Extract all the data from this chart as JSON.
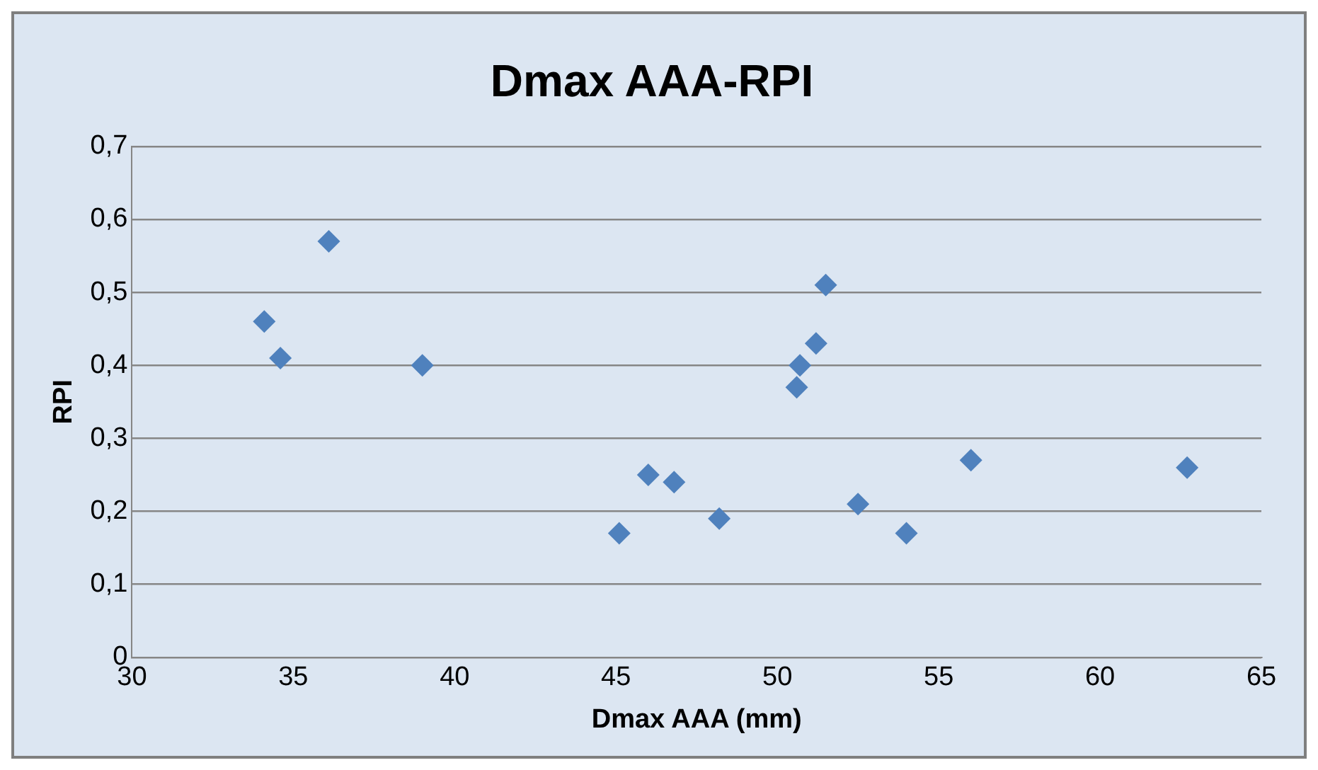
{
  "chart_data": {
    "type": "scatter",
    "title": "Dmax AAA-RPI",
    "xlabel": "Dmax AAA (mm)",
    "ylabel": "RPI",
    "x": [
      34.1,
      34.6,
      36.1,
      39.0,
      45.1,
      46.0,
      46.8,
      48.2,
      50.6,
      50.7,
      51.2,
      51.5,
      52.5,
      54.0,
      56.0,
      62.7
    ],
    "series": [
      {
        "color": "#4f81bd",
        "values": [
          0.46,
          0.41,
          0.57,
          0.4,
          0.17,
          0.25,
          0.24,
          0.19,
          0.37,
          0.4,
          0.43,
          0.51,
          0.21,
          0.17,
          0.27,
          0.26
        ]
      }
    ],
    "xlim": [
      30,
      65
    ],
    "xticks": [
      30,
      35,
      40,
      45,
      50,
      55,
      60,
      65
    ],
    "ylim": [
      0,
      0.7
    ],
    "yticks": [
      0,
      {
        "value": 0.1,
        "label": "0,1"
      },
      {
        "value": 0.2,
        "label": "0,2"
      },
      {
        "value": 0.3,
        "label": "0,3"
      },
      {
        "value": 0.4,
        "label": "0,4"
      },
      {
        "value": 0.5,
        "label": "0,5"
      },
      {
        "value": 0.6,
        "label": "0,6"
      },
      {
        "value": 0.7,
        "label": "0,7"
      }
    ],
    "grid": "y",
    "legend": false,
    "marker": "diamond"
  }
}
